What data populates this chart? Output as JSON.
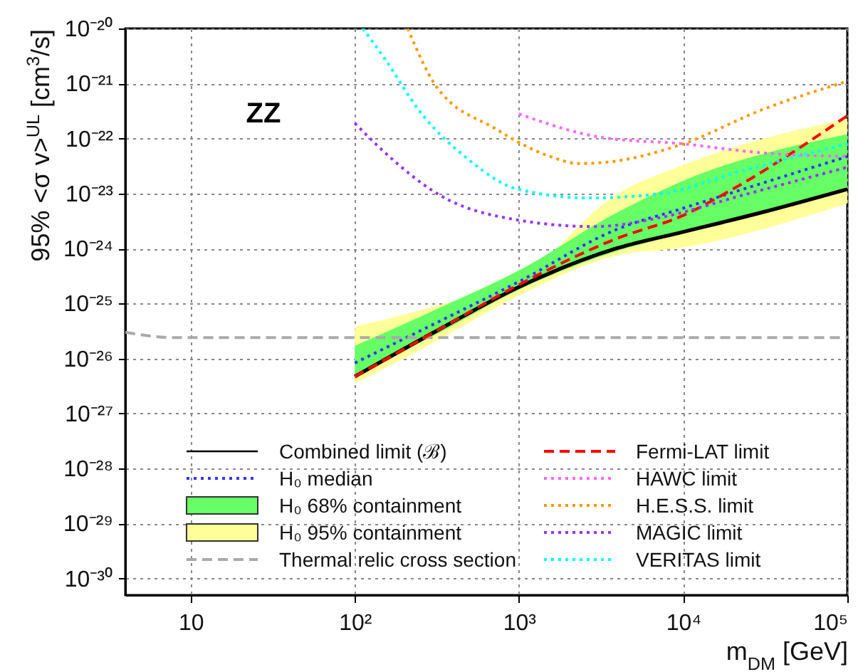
{
  "chart_data": {
    "type": "line",
    "xlabel": "m$_{DM}$ [GeV]",
    "ylabel": "95% <σ v>$^{UL}$ [cm$^{3}$/s]",
    "annotations": [
      "ZZ"
    ],
    "log": "xy",
    "grid": true,
    "legend": "bottom",
    "xlim": [
      4,
      100000
    ],
    "xticks": [
      {
        "value": 10,
        "label": "10"
      },
      {
        "value": 100,
        "label": "10²"
      },
      {
        "value": 1000,
        "label": "10³"
      },
      {
        "value": 10000,
        "label": "10⁴"
      },
      {
        "value": 100000,
        "label": "10⁵"
      }
    ],
    "ylim": [
      5e-31,
      1e-20
    ],
    "yticks": [
      {
        "value": 1e-30,
        "label": "10⁻³⁰"
      },
      {
        "value": 1e-29,
        "label": "10⁻²⁹"
      },
      {
        "value": 1e-28,
        "label": "10⁻²⁸"
      },
      {
        "value": 1e-27,
        "label": "10⁻²⁷"
      },
      {
        "value": 1e-26,
        "label": "10⁻²⁶"
      },
      {
        "value": 1e-25,
        "label": "10⁻²⁵"
      },
      {
        "value": 1e-24,
        "label": "10⁻²⁴"
      },
      {
        "value": 1e-23,
        "label": "10⁻²³"
      },
      {
        "value": 1e-22,
        "label": "10⁻²²"
      },
      {
        "value": 1e-21,
        "label": "10⁻²¹"
      },
      {
        "value": 1e-20,
        "label": "10⁻²⁰"
      }
    ],
    "series": [
      {
        "name": "Combined limit (ℬ)",
        "type": "line",
        "color": "#000000",
        "line_style": "solid",
        "x": [
          100,
          316,
          1000,
          3900,
          10000,
          29000,
          100000
        ],
        "values": [
          4.7e-27,
          3.2e-26,
          2e-25,
          1e-24,
          2e-24,
          4.4e-24,
          1.2e-23
        ]
      },
      {
        "name": "H₀ median",
        "type": "line",
        "color": "#3333ff",
        "line_style": "dotted",
        "x": [
          100,
          316,
          1000,
          3900,
          10000,
          100000
        ],
        "values": [
          8.3e-27,
          4.5e-26,
          2.5e-25,
          2.2e-24,
          5.4e-24,
          4.7e-23
        ]
      },
      {
        "name": "H₀ 68% containment",
        "type": "area",
        "color": "#66ff66",
        "x": [
          100,
          316,
          1000,
          3900,
          10000,
          100000
        ],
        "values": [
          null,
          null,
          null,
          null,
          null,
          null
        ],
        "lower": [
          4.7e-27,
          2.8e-26,
          1.8e-25,
          8.9e-25,
          1.9e-24,
          1.3e-23
        ],
        "upper": [
          1.7e-26,
          7.9e-26,
          4e-25,
          4.4e-24,
          1.7e-23,
          1.2e-22
        ]
      },
      {
        "name": "H₀ 95% containment",
        "type": "area",
        "color": "#ffff99",
        "x": [
          100,
          316,
          1000,
          3900,
          10000,
          100000
        ],
        "values": [
          null,
          null,
          null,
          null,
          null,
          null
        ],
        "lower": [
          3.5e-27,
          2.1e-26,
          1.4e-25,
          7.4e-25,
          1.05e-24,
          6.6e-24
        ],
        "upper": [
          3.8e-26,
          9.1e-26,
          2.7e-25,
          9.5e-24,
          3.3e-23,
          2.3e-22
        ]
      },
      {
        "name": "Thermal relic cross section",
        "type": "line",
        "color": "#aaaaaa",
        "line_style": "dashed",
        "x": [
          4,
          8,
          100000
        ],
        "values": [
          3e-26,
          2.4e-26,
          2.4e-26
        ]
      },
      {
        "name": "Fermi-LAT limit",
        "type": "line",
        "color": "#ff0000",
        "line_style": "dashed",
        "x": [
          100,
          316,
          1000,
          3900,
          10000,
          21000,
          100000
        ],
        "values": [
          4.7e-27,
          3.2e-26,
          2.2e-25,
          1.5e-24,
          4e-24,
          1.3e-23,
          2.6e-22
        ]
      },
      {
        "name": "HAWC limit",
        "type": "line",
        "color": "#ff66ff",
        "line_style": "dotted",
        "x": [
          1000,
          3162,
          10000,
          30000,
          100000
        ],
        "values": [
          2.8e-22,
          1.05e-22,
          8e-23,
          5.5e-23,
          4.7e-23
        ]
      },
      {
        "name": "H.E.S.S. limit",
        "type": "line",
        "color": "#ff9900",
        "line_style": "dotted",
        "x": [
          210,
          310,
          720,
          1550,
          2300,
          3400,
          10000,
          30000,
          100000
        ],
        "values": [
          1e-20,
          9.3e-22,
          1.5e-22,
          4.7e-23,
          3.5e-23,
          3.7e-23,
          8e-23,
          3.3e-22,
          1.1e-21
        ]
      },
      {
        "name": "MAGIC limit",
        "type": "line",
        "color": "#9933ff",
        "line_style": "dotted",
        "x": [
          100,
          155,
          330,
          980,
          2900,
          7400,
          23000,
          100000
        ],
        "values": [
          1.9e-22,
          5.3e-23,
          9.3e-24,
          3.3e-24,
          2.5e-24,
          3.7e-24,
          9.3e-24,
          3e-23
        ]
      },
      {
        "name": "VERITAS limit",
        "type": "line",
        "color": "#00ffff",
        "line_style": "dotted",
        "x": [
          112,
          155,
          245,
          490,
          980,
          2700,
          7400,
          23000,
          100000
        ],
        "values": [
          1e-20,
          2.6e-21,
          3.3e-22,
          4.2e-23,
          1.2e-23,
          8.3e-24,
          1e-23,
          2.6e-23,
          8e-23
        ]
      }
    ]
  }
}
